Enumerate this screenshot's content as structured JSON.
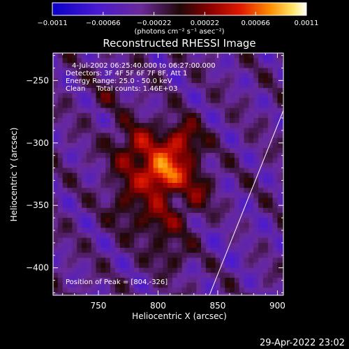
{
  "chart_data": {
    "type": "heatmap",
    "title": "Reconstructed RHESSI Image",
    "xlabel": "Heliocentric X (arcsec)",
    "ylabel": "Heliocentric Y (arcsec)",
    "xlim": [
      712,
      905
    ],
    "ylim": [
      -422,
      -228
    ],
    "xticks": [
      750,
      800,
      850,
      900
    ],
    "yticks": [
      -250,
      -300,
      -350,
      -400
    ],
    "ytick_labels": [
      "−250",
      "−300",
      "−350",
      "−400"
    ],
    "colorbar": {
      "range": [
        -0.0011,
        0.0011
      ],
      "ticks": [
        -0.0011,
        -0.00066,
        -0.00022,
        0.00022,
        0.00066,
        0.0011
      ],
      "tick_labels": [
        "−0.0011",
        "−0.00066",
        "−0.00022",
        "0.00022",
        "0.00066",
        "0.0011"
      ],
      "unit_label": "(photons cm⁻² s⁻¹ asec⁻²)"
    },
    "annotations": [
      "4-Jul-2002 06:25:40.000 to 06:27:00.000",
      "Detectors: 3F 4F 5F 6F 7F 8F, Att 1",
      "Energy Range: 25.0 - 50.0 keV",
      "Clean     Total counts: 1.46E+03"
    ],
    "peak_label": "Position of Peak = [804,-326]",
    "peak": {
      "x": 804,
      "y": -326
    },
    "sources": [
      {
        "x": 804,
        "y": -326,
        "sx": 12,
        "sy": 11,
        "amp": 0.001
      },
      {
        "x": 820,
        "y": -300,
        "sx": 11,
        "sy": 12,
        "amp": 0.0007
      },
      {
        "x": 783,
        "y": -305,
        "sx": 15,
        "sy": 15,
        "amp": 0.0006
      },
      {
        "x": 800,
        "y": -362,
        "sx": 15,
        "sy": 13,
        "amp": 0.00045
      },
      {
        "x": 832,
        "y": -338,
        "sx": 10,
        "sy": 14,
        "amp": 0.0004
      },
      {
        "x": 773,
        "y": -345,
        "sx": 11,
        "sy": 14,
        "amp": 0.00035
      },
      {
        "x": 812,
        "y": -390,
        "sx": 11,
        "sy": 9,
        "amp": 0.0003
      },
      {
        "x": 758,
        "y": -262,
        "sx": 10,
        "sy": 9,
        "amp": 0.0002
      }
    ],
    "limb_line": [
      [
        843,
        -422
      ],
      [
        905,
        -274
      ]
    ],
    "footer_date": "29-Apr-2022 23:02"
  }
}
